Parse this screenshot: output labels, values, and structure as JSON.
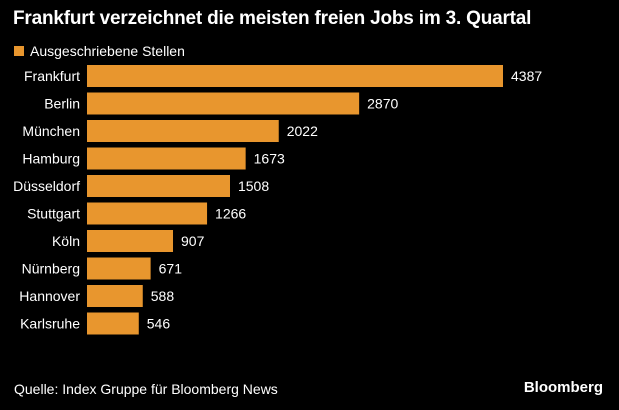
{
  "title": "Frankfurt verzeichnet die meisten freien Jobs im 3. Quartal",
  "source": "Quelle: Index Gruppe für Bloomberg News",
  "brand": "Bloomberg",
  "colors": {
    "background": "#000000",
    "bar": "#E8962E",
    "text": "#FFFFFF"
  },
  "chart_data": {
    "type": "bar",
    "orientation": "horizontal",
    "categories": [
      "Frankfurt",
      "Berlin",
      "München",
      "Hamburg",
      "Düsseldorf",
      "Stuttgart",
      "Köln",
      "Nürnberg",
      "Hannover",
      "Karlsruhe"
    ],
    "series": [
      {
        "name": "Ausgeschriebene Stellen",
        "values": [
          4387,
          2870,
          2022,
          1673,
          1508,
          1266,
          907,
          671,
          588,
          546
        ]
      }
    ],
    "data_labels": [
      "4387",
      "2870",
      "2022",
      "1673",
      "1508",
      "1266",
      "907",
      "671",
      "588",
      "546"
    ],
    "xlim": [
      0,
      4387
    ],
    "grid": false,
    "legend": "top-left"
  }
}
